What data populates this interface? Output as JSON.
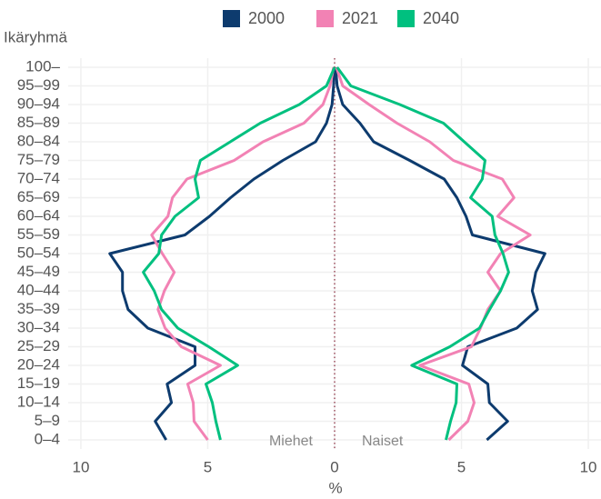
{
  "chart_data": {
    "type": "line",
    "orientation": "horizontal",
    "y_axis_label": "Ikäryhmä",
    "x_axis_label": "%",
    "annotations": [
      "Miehet",
      "Naiset"
    ],
    "categories": [
      "0–4",
      "5–9",
      "10–14",
      "15–19",
      "20–24",
      "25–29",
      "30–34",
      "35–39",
      "40–44",
      "45–49",
      "50–54",
      "55–59",
      "60–64",
      "65–69",
      "70–74",
      "75–79",
      "80–84",
      "85–89",
      "90–94",
      "95–99",
      "100–"
    ],
    "xlim": [
      -10.5,
      10.5
    ],
    "xticks": [
      {
        "value": -10,
        "label": "10"
      },
      {
        "value": -5,
        "label": "5"
      },
      0,
      5,
      10
    ],
    "grid": true,
    "legend": "top",
    "series": [
      {
        "name": "2000",
        "color": "#0d3b6e",
        "men": [
          -6.64,
          -7.07,
          -6.43,
          -6.6,
          -5.5,
          -5.5,
          -7.36,
          -8.14,
          -8.36,
          -8.36,
          -8.86,
          -5.9,
          -4.93,
          -4.1,
          -3.18,
          -2.04,
          -0.75,
          -0.32,
          -0.1,
          -0.04,
          0
        ],
        "women": [
          6.0,
          6.82,
          6.1,
          6.04,
          5.04,
          5.25,
          7.18,
          8.0,
          7.79,
          7.93,
          8.29,
          5.43,
          5.18,
          4.82,
          4.32,
          2.96,
          1.54,
          1.0,
          0.32,
          0.1,
          0.04
        ]
      },
      {
        "name": "2021",
        "color": "#f282b4",
        "men": [
          -5.0,
          -5.54,
          -5.57,
          -5.79,
          -4.5,
          -6.04,
          -6.68,
          -6.96,
          -6.71,
          -6.32,
          -6.79,
          -7.21,
          -6.57,
          -6.39,
          -5.82,
          -3.96,
          -2.82,
          -1.21,
          -0.46,
          -0.18,
          -0.04
        ],
        "women": [
          4.5,
          5.25,
          5.5,
          5.29,
          3.36,
          5.39,
          5.75,
          6.04,
          6.54,
          6.04,
          6.54,
          7.71,
          6.43,
          7.07,
          6.61,
          4.68,
          3.75,
          2.46,
          1.36,
          0.32,
          0.07
        ]
      },
      {
        "name": "2040",
        "color": "#00c07f",
        "men": [
          -4.5,
          -4.68,
          -4.82,
          -5.07,
          -3.82,
          -4.96,
          -6.18,
          -6.82,
          -7.11,
          -7.54,
          -6.93,
          -6.82,
          -6.29,
          -5.36,
          -5.5,
          -5.29,
          -4.11,
          -2.93,
          -1.39,
          -0.32,
          0
        ],
        "women": [
          4.39,
          4.57,
          4.79,
          4.82,
          3.04,
          4.54,
          5.71,
          6.11,
          6.54,
          6.86,
          6.64,
          6.32,
          6.21,
          5.36,
          5.82,
          5.93,
          5.11,
          4.29,
          2.57,
          0.64,
          0.1
        ]
      }
    ]
  }
}
